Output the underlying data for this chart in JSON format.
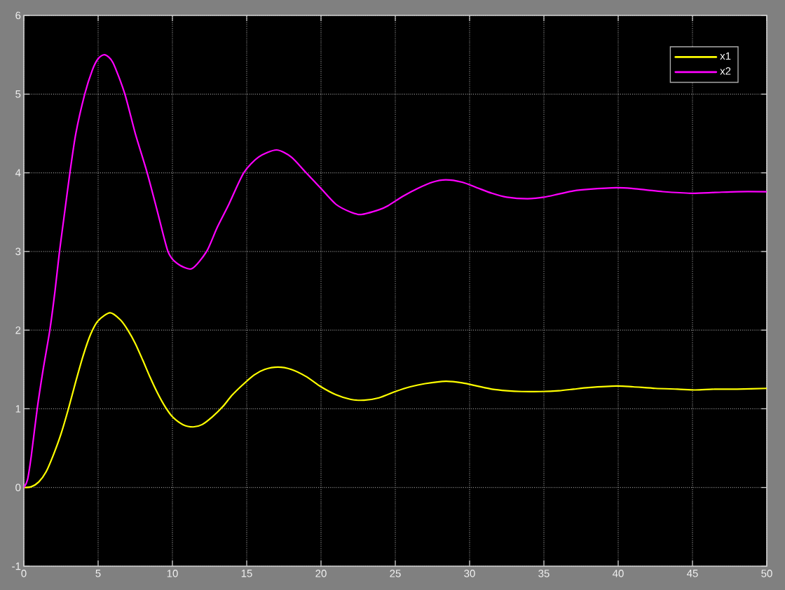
{
  "chart_data": {
    "type": "line",
    "xlim": [
      0,
      50
    ],
    "ylim": [
      -1,
      6
    ],
    "xticks": [
      0,
      5,
      10,
      15,
      20,
      25,
      30,
      35,
      40,
      45,
      50
    ],
    "yticks": [
      -1,
      0,
      1,
      2,
      3,
      4,
      5,
      6
    ],
    "grid": true,
    "legend": "top right",
    "series": [
      {
        "name": "x1",
        "color": "#ffff00",
        "x": [
          0,
          0.5,
          1.0,
          1.5,
          2.0,
          2.5,
          3.0,
          3.5,
          4.0,
          4.5,
          5.0,
          5.8,
          6.5,
          7.0,
          7.5,
          8.0,
          8.5,
          9.0,
          9.5,
          10.0,
          10.7,
          11.4,
          12.0,
          12.7,
          13.4,
          14.0,
          14.7,
          15.5,
          16.2,
          17.1,
          18.0,
          19.0,
          20.0,
          21.0,
          22.0,
          22.9,
          23.9,
          25.0,
          26.0,
          27.0,
          28.4,
          29.5,
          30.5,
          31.5,
          32.5,
          33.5,
          34.8,
          36.0,
          37.0,
          38.0,
          39.9,
          41.0,
          42.5,
          44.0,
          45.2,
          46.5,
          48.0,
          50
        ],
        "values": [
          0,
          0.01,
          0.07,
          0.2,
          0.42,
          0.68,
          1.0,
          1.35,
          1.68,
          1.95,
          2.12,
          2.22,
          2.13,
          2.0,
          1.83,
          1.62,
          1.4,
          1.2,
          1.03,
          0.9,
          0.8,
          0.77,
          0.8,
          0.9,
          1.03,
          1.17,
          1.3,
          1.43,
          1.5,
          1.53,
          1.5,
          1.41,
          1.28,
          1.18,
          1.12,
          1.11,
          1.14,
          1.22,
          1.28,
          1.32,
          1.35,
          1.33,
          1.29,
          1.25,
          1.23,
          1.22,
          1.22,
          1.23,
          1.25,
          1.27,
          1.29,
          1.28,
          1.26,
          1.25,
          1.24,
          1.25,
          1.25,
          1.26
        ]
      },
      {
        "name": "x2",
        "color": "#ff00ff",
        "x": [
          0,
          0.25,
          0.5,
          0.9,
          1.3,
          1.75,
          2.1,
          2.4,
          2.75,
          3.1,
          3.5,
          4.1,
          4.6,
          5.0,
          5.45,
          6.0,
          6.8,
          7.5,
          8.3,
          9.0,
          9.7,
          10.3,
          11.3,
          12.3,
          13.0,
          13.8,
          14.8,
          15.8,
          17.0,
          18.0,
          19.0,
          20.0,
          21.0,
          22.0,
          22.7,
          23.9,
          24.5,
          25.5,
          26.5,
          27.5,
          28.4,
          29.5,
          30.5,
          31.5,
          32.5,
          33.9,
          35.0,
          36.0,
          37.0,
          38.0,
          39.9,
          41.0,
          42.0,
          43.0,
          44.9,
          46.5,
          48.0,
          50
        ],
        "values": [
          0,
          0.1,
          0.4,
          1.0,
          1.5,
          2.0,
          2.5,
          3.0,
          3.5,
          4.0,
          4.5,
          5.0,
          5.3,
          5.45,
          5.5,
          5.4,
          5.0,
          4.5,
          4.0,
          3.5,
          3.0,
          2.85,
          2.78,
          3.0,
          3.3,
          3.6,
          4.0,
          4.2,
          4.29,
          4.2,
          4.0,
          3.8,
          3.6,
          3.5,
          3.47,
          3.53,
          3.58,
          3.7,
          3.8,
          3.88,
          3.91,
          3.88,
          3.81,
          3.74,
          3.69,
          3.67,
          3.69,
          3.73,
          3.77,
          3.79,
          3.81,
          3.8,
          3.78,
          3.76,
          3.74,
          3.75,
          3.76,
          3.76
        ]
      }
    ]
  }
}
